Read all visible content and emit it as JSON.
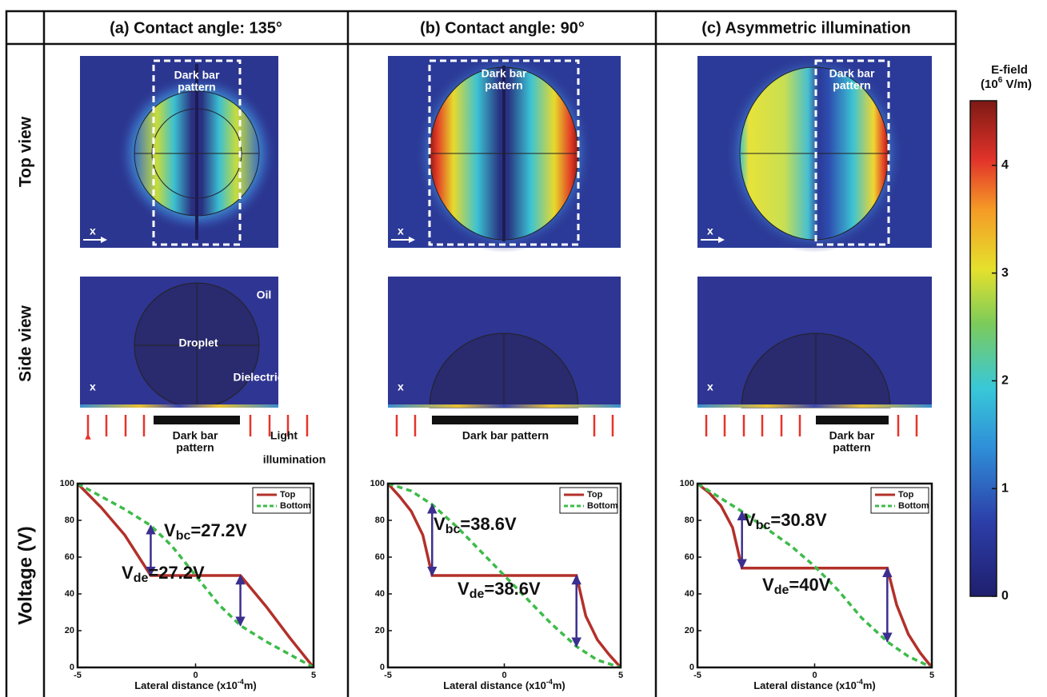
{
  "header": {
    "columns": [
      "(a) Contact angle: 135°",
      "(b) Contact angle: 90°",
      "(c) Asymmetric illumination"
    ]
  },
  "row_labels": [
    "Top view",
    "Side view",
    "Voltage (V)"
  ],
  "panels": [
    {
      "top_view": {
        "bar_label": [
          "Dark bar",
          "pattern"
        ],
        "axis": "x"
      },
      "side_view": {
        "oil": "Oil",
        "droplet": "Droplet",
        "dielectric": "Dielectric",
        "axis": "x"
      },
      "below": {
        "bar_label": [
          "Dark bar",
          "pattern"
        ],
        "light_label": [
          "Light",
          "illumination"
        ]
      }
    },
    {
      "top_view": {
        "bar_label": [
          "Dark bar",
          "pattern"
        ],
        "axis": "x"
      },
      "side_view": {
        "axis": "x"
      },
      "below": {
        "bar_label": [
          "Dark bar pattern"
        ]
      }
    },
    {
      "top_view": {
        "bar_label": [
          "Dark bar",
          "pattern"
        ],
        "axis": "x"
      },
      "side_view": {
        "axis": "x"
      },
      "below": {
        "bar_label": [
          "Dark bar",
          "pattern"
        ]
      }
    }
  ],
  "colorbar": {
    "title": "E-field",
    "unit": [
      "(10",
      "6",
      " V/m)"
    ],
    "lim": [
      0,
      4.6
    ],
    "ticks": [
      0,
      1,
      2,
      3,
      4
    ]
  },
  "chart_data": [
    {
      "type": "line",
      "xlabel": [
        "Lateral distance (x10",
        "-4",
        "m)"
      ],
      "xlim": [
        -5,
        5
      ],
      "xticks": [
        -5,
        0,
        5
      ],
      "ylim": [
        0,
        100
      ],
      "yticks": [
        0,
        20,
        40,
        60,
        80,
        100
      ],
      "legend": "upper right",
      "series": [
        {
          "name": "Top",
          "color": "#b3302a",
          "x": [
            -5,
            -4,
            -3,
            -1.9,
            0,
            1.9,
            3,
            4,
            5
          ],
          "values": [
            100,
            87,
            72,
            50,
            50,
            50,
            33,
            16,
            0
          ]
        },
        {
          "name": "Bottom",
          "color": "#3dbb4a",
          "dashed": true,
          "x": [
            -5,
            -4,
            -3,
            -1.9,
            -1,
            0,
            1,
            1.9,
            3,
            4,
            5
          ],
          "values": [
            100,
            93,
            86,
            77.2,
            66,
            50,
            34,
            22.8,
            14,
            7,
            0
          ]
        }
      ],
      "annotations": [
        [
          "V",
          "bc",
          "=27.2V"
        ],
        [
          "V",
          "de",
          "=27.2V"
        ]
      ]
    },
    {
      "type": "line",
      "xlabel": [
        "Lateral distance (x10",
        "-4",
        "m)"
      ],
      "xlim": [
        -5,
        5
      ],
      "xticks": [
        -5,
        0,
        5
      ],
      "ylim": [
        0,
        100
      ],
      "yticks": [
        0,
        20,
        40,
        60,
        80,
        100
      ],
      "legend": "upper right",
      "series": [
        {
          "name": "Top",
          "color": "#b3302a",
          "x": [
            -5,
            -4.5,
            -4,
            -3.5,
            -3.1,
            0,
            3.1,
            3.5,
            4,
            4.5,
            5
          ],
          "values": [
            100,
            93,
            85,
            72,
            50,
            50,
            50,
            28,
            15,
            7,
            0
          ]
        },
        {
          "name": "Bottom",
          "color": "#3dbb4a",
          "dashed": true,
          "x": [
            -5,
            -4,
            -3.1,
            -2,
            -1,
            0,
            1,
            2,
            3.1,
            4,
            5
          ],
          "values": [
            100,
            96,
            88.6,
            76,
            63,
            50,
            37,
            24,
            11.4,
            4,
            0
          ]
        }
      ],
      "annotations": [
        [
          "V",
          "bc",
          "=38.6V"
        ],
        [
          "V",
          "de",
          "=38.6V"
        ]
      ]
    },
    {
      "type": "line",
      "xlabel": [
        "Lateral distance (x10",
        "-4",
        "m)"
      ],
      "xlim": [
        -5,
        5
      ],
      "xticks": [
        -5,
        0,
        5
      ],
      "ylim": [
        0,
        100
      ],
      "yticks": [
        0,
        20,
        40,
        60,
        80,
        100
      ],
      "legend": "upper right",
      "series": [
        {
          "name": "Top",
          "color": "#b3302a",
          "x": [
            -5,
            -4.5,
            -4,
            -3.5,
            -3.1,
            0,
            3.1,
            3.5,
            4,
            4.5,
            5
          ],
          "values": [
            100,
            95,
            88,
            76,
            54,
            54,
            54,
            34,
            18,
            8,
            0
          ]
        },
        {
          "name": "Bottom",
          "color": "#3dbb4a",
          "dashed": true,
          "x": [
            -5,
            -4,
            -3.1,
            -2,
            -1,
            0,
            1,
            2,
            3.1,
            4,
            5
          ],
          "values": [
            100,
            92,
            84.8,
            75,
            66,
            55,
            42,
            27,
            14,
            6,
            0
          ]
        }
      ],
      "annotations": [
        [
          "V",
          "bc",
          "=30.8V"
        ],
        [
          "V",
          "de",
          "=40V"
        ]
      ]
    }
  ]
}
